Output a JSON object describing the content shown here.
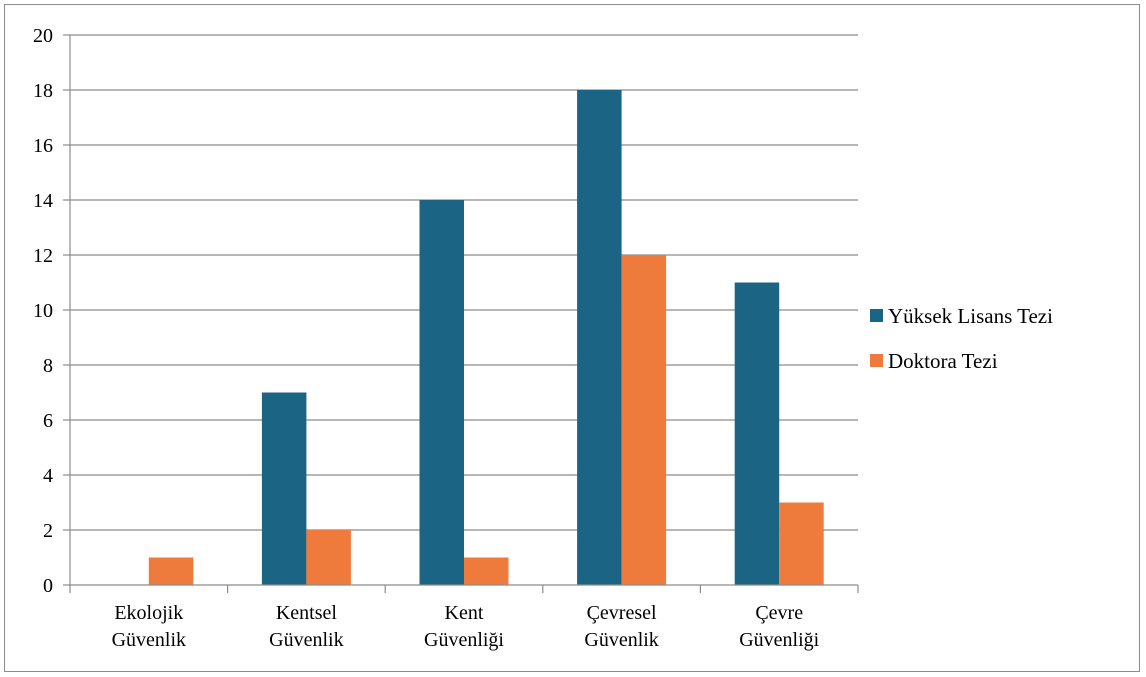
{
  "chart_data": {
    "type": "bar",
    "categories": [
      [
        "Ekolojik",
        "Güvenlik"
      ],
      [
        "Kentsel",
        "Güvenlik"
      ],
      [
        "Kent",
        "Güvenliği"
      ],
      [
        "Çevresel",
        "Güvenlik"
      ],
      [
        "Çevre",
        "Güvenliği"
      ]
    ],
    "series": [
      {
        "name": "Yüksek Lisans Tezi",
        "color": "#1b6483",
        "values": [
          0,
          7,
          14,
          18,
          11
        ]
      },
      {
        "name": "Doktora Tezi",
        "color": "#ee7b3b",
        "values": [
          1,
          2,
          1,
          12,
          3
        ]
      }
    ],
    "ylim": [
      0,
      20
    ],
    "yticks": [
      "0",
      "2",
      "4",
      "6",
      "8",
      "10",
      "12",
      "14",
      "16",
      "18",
      "20"
    ],
    "grid": true,
    "legend_position": "right"
  }
}
